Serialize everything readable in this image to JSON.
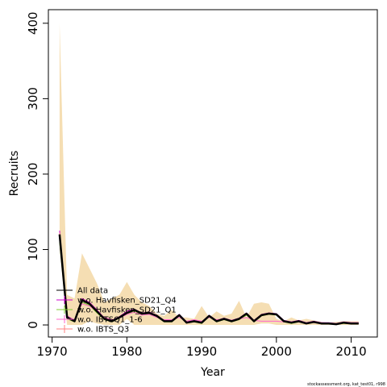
{
  "chart_data": {
    "type": "line",
    "xlabel": "Year",
    "ylabel": "Recruits",
    "footer": "stockassessment.org, kat_test01, r998",
    "xlim": [
      1969.5,
      2013.5
    ],
    "ylim": [
      -16,
      418
    ],
    "xticks": [
      1970,
      1980,
      1990,
      2000,
      2010
    ],
    "yticks": [
      0,
      100,
      200,
      300,
      400
    ],
    "grid": false,
    "legend_position": "bottom-left",
    "x": [
      1971,
      1972,
      1973,
      1974,
      1975,
      1976,
      1977,
      1978,
      1979,
      1980,
      1981,
      1982,
      1983,
      1984,
      1985,
      1986,
      1987,
      1988,
      1989,
      1990,
      1991,
      1992,
      1993,
      1994,
      1995,
      1996,
      1997,
      1998,
      1999,
      2000,
      2001,
      2002,
      2003,
      2004,
      2005,
      2006,
      2007,
      2008,
      2009,
      2010,
      2011
    ],
    "confidence_band": {
      "color": "#f5deb3",
      "lower": [
        100,
        0,
        0,
        0,
        5,
        2,
        0,
        0,
        0,
        8,
        0,
        0,
        0,
        0,
        0,
        0,
        0,
        0,
        0,
        0,
        0,
        0,
        0,
        0,
        0,
        0,
        0,
        2,
        2,
        0,
        0,
        0,
        0,
        0,
        0,
        0,
        0,
        0,
        0,
        0,
        0
      ],
      "upper": [
        400,
        40,
        35,
        95,
        75,
        55,
        30,
        35,
        40,
        57,
        40,
        30,
        25,
        15,
        12,
        20,
        10,
        10,
        8,
        25,
        10,
        18,
        12,
        15,
        32,
        10,
        28,
        30,
        28,
        8,
        5,
        10,
        6,
        8,
        6,
        4,
        3,
        4,
        5,
        5,
        5
      ]
    },
    "series": [
      {
        "name": "All data",
        "color": "#000000",
        "width": 2.5,
        "values": [
          120,
          10,
          5,
          33,
          28,
          18,
          8,
          5,
          10,
          16,
          20,
          15,
          16,
          12,
          5,
          5,
          13,
          3,
          5,
          3,
          12,
          5,
          8,
          5,
          8,
          15,
          5,
          13,
          15,
          14,
          5,
          3,
          5,
          2,
          4,
          2,
          2,
          1,
          3,
          2,
          2
        ]
      },
      {
        "name": "w.o. Havfisken_SD21_Q4",
        "color": "#cc00cc",
        "width": 1,
        "values": [
          125,
          12,
          6,
          35,
          30,
          20,
          9,
          6,
          11,
          18,
          21,
          16,
          17,
          13,
          6,
          6,
          14,
          4,
          6,
          4,
          13,
          6,
          9,
          6,
          9,
          16,
          6,
          14,
          16,
          15,
          6,
          4,
          6,
          3,
          5,
          3,
          3,
          2,
          4,
          3,
          3
        ]
      },
      {
        "name": "w.o. Havfisken_SD21_Q1",
        "color": "#7fcc33",
        "width": 1,
        "values": [
          110,
          8,
          4,
          30,
          26,
          16,
          7,
          4,
          9,
          15,
          18,
          14,
          15,
          11,
          4,
          4,
          12,
          3,
          4,
          2,
          11,
          4,
          7,
          4,
          7,
          13,
          4,
          12,
          14,
          13,
          4,
          2,
          4,
          2,
          3,
          2,
          2,
          1,
          2,
          2,
          2
        ]
      },
      {
        "name": "w.o. IBTSQ1_1-6",
        "color": "#ff66cc",
        "width": 1,
        "values": [
          118,
          11,
          7,
          28,
          25,
          18,
          10,
          7,
          9,
          14,
          17,
          13,
          14,
          10,
          7,
          7,
          10,
          5,
          7,
          5,
          10,
          7,
          8,
          6,
          8,
          10,
          6,
          5,
          5,
          5,
          4,
          3,
          4,
          3,
          3,
          2,
          2,
          2,
          3,
          2,
          2
        ]
      },
      {
        "name": "w.o. IBTS_Q3",
        "color": "#ff8080",
        "width": 1,
        "values": [
          122,
          10,
          5,
          34,
          29,
          19,
          8,
          5,
          10,
          17,
          20,
          15,
          16,
          12,
          5,
          5,
          13,
          3,
          5,
          3,
          12,
          5,
          8,
          5,
          8,
          15,
          5,
          13,
          15,
          14,
          5,
          3,
          5,
          2,
          4,
          2,
          2,
          1,
          3,
          2,
          2
        ]
      }
    ]
  }
}
